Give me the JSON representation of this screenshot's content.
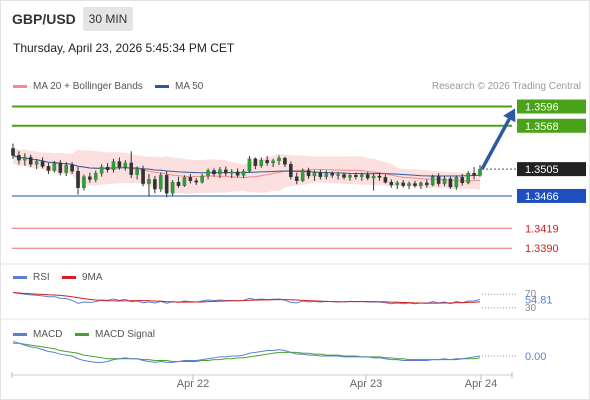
{
  "header": {
    "symbol": "GBP/USD",
    "timeframe": "30 MIN",
    "datetime": "Thursday, April 23, 2026 5:45:34 PM CET"
  },
  "legend": {
    "ma20": "MA 20 + Bollinger Bands",
    "ma50": "MA 50",
    "ma20_color": "#f28b8b",
    "ma50_color": "#2c5a9e",
    "rsi": "RSI",
    "rsi_ma": "9MA",
    "rsi_color": "#5a7fd6",
    "rsi_ma_color": "#d21f1f",
    "macd": "MACD",
    "macd_signal": "MACD Signal",
    "macd_color": "#5a7fd6",
    "macd_signal_color": "#49a02c"
  },
  "credit": "Research © 2026 Trading Central",
  "chart_data": {
    "type": "candlestick",
    "price_ylim": [
      1.337,
      1.362
    ],
    "x_labels": [
      "Apr 22",
      "Apr 23",
      "Apr 24"
    ],
    "levels": [
      {
        "label": "1.3596",
        "value": 1.3596,
        "kind": "resistance",
        "color": "#4aa21a"
      },
      {
        "label": "1.3568",
        "value": 1.3568,
        "kind": "resistance",
        "color": "#4aa21a"
      },
      {
        "label": "1.3505",
        "value": 1.3505,
        "kind": "current",
        "color": "#222222"
      },
      {
        "label": "1.3466",
        "value": 1.3466,
        "kind": "pivot",
        "color": "#1f4fbf"
      },
      {
        "label": "1.3419",
        "value": 1.3419,
        "kind": "support",
        "color": "#e07070"
      },
      {
        "label": "1.3390",
        "value": 1.339,
        "kind": "support",
        "color": "#e07070"
      }
    ],
    "arrow": {
      "from": 1.3505,
      "to": 1.3596,
      "color": "#2c5a9e"
    },
    "candles": [
      [
        1.3535,
        1.3542,
        1.352,
        1.3525
      ],
      [
        1.3525,
        1.3531,
        1.3512,
        1.3518
      ],
      [
        1.3518,
        1.3528,
        1.351,
        1.3522
      ],
      [
        1.3522,
        1.3526,
        1.3508,
        1.3512
      ],
      [
        1.3512,
        1.352,
        1.3505,
        1.3516
      ],
      [
        1.3516,
        1.3522,
        1.3506,
        1.3509
      ],
      [
        1.3509,
        1.3514,
        1.3498,
        1.3503
      ],
      [
        1.3503,
        1.3517,
        1.35,
        1.3514
      ],
      [
        1.3514,
        1.3518,
        1.3496,
        1.35
      ],
      [
        1.35,
        1.3515,
        1.3495,
        1.3511
      ],
      [
        1.3511,
        1.3515,
        1.3498,
        1.3502
      ],
      [
        1.3502,
        1.3508,
        1.3468,
        1.3478
      ],
      [
        1.3478,
        1.3497,
        1.3474,
        1.3494
      ],
      [
        1.3494,
        1.35,
        1.3485,
        1.349
      ],
      [
        1.349,
        1.3503,
        1.3486,
        1.3499
      ],
      [
        1.3499,
        1.3512,
        1.3494,
        1.3508
      ],
      [
        1.3508,
        1.3514,
        1.35,
        1.3504
      ],
      [
        1.3504,
        1.352,
        1.35,
        1.3516
      ],
      [
        1.3516,
        1.3522,
        1.3504,
        1.3508
      ],
      [
        1.3508,
        1.3518,
        1.3503,
        1.3514
      ],
      [
        1.3514,
        1.3531,
        1.3492,
        1.3497
      ],
      [
        1.3497,
        1.3509,
        1.349,
        1.3505
      ],
      [
        1.3505,
        1.351,
        1.348,
        1.3484
      ],
      [
        1.3484,
        1.3498,
        1.3465,
        1.349
      ],
      [
        1.349,
        1.3495,
        1.347,
        1.3476
      ],
      [
        1.3476,
        1.35,
        1.3472,
        1.3496
      ],
      [
        1.3496,
        1.3502,
        1.3464,
        1.347
      ],
      [
        1.347,
        1.3489,
        1.3466,
        1.3486
      ],
      [
        1.3486,
        1.3494,
        1.3478,
        1.3481
      ],
      [
        1.3481,
        1.3496,
        1.3479,
        1.3493
      ],
      [
        1.3493,
        1.3498,
        1.3484,
        1.3488
      ],
      [
        1.3488,
        1.3492,
        1.3482,
        1.3486
      ],
      [
        1.3486,
        1.3498,
        1.3484,
        1.3495
      ],
      [
        1.3495,
        1.3506,
        1.349,
        1.3503
      ],
      [
        1.3503,
        1.3506,
        1.3494,
        1.3498
      ],
      [
        1.3498,
        1.3508,
        1.3492,
        1.3504
      ],
      [
        1.3504,
        1.3509,
        1.3495,
        1.3499
      ],
      [
        1.3499,
        1.3505,
        1.3492,
        1.3501
      ],
      [
        1.3501,
        1.3506,
        1.3493,
        1.3496
      ],
      [
        1.3496,
        1.3505,
        1.3492,
        1.3502
      ],
      [
        1.3502,
        1.3524,
        1.35,
        1.352
      ],
      [
        1.352,
        1.3522,
        1.3505,
        1.351
      ],
      [
        1.351,
        1.3522,
        1.3507,
        1.3518
      ],
      [
        1.3518,
        1.3524,
        1.351,
        1.3514
      ],
      [
        1.3514,
        1.352,
        1.3508,
        1.3517
      ],
      [
        1.3517,
        1.3525,
        1.3511,
        1.3521
      ],
      [
        1.3521,
        1.3523,
        1.3508,
        1.3512
      ],
      [
        1.3512,
        1.3516,
        1.349,
        1.3494
      ],
      [
        1.3494,
        1.35,
        1.3483,
        1.3488
      ],
      [
        1.3488,
        1.3506,
        1.3486,
        1.3503
      ],
      [
        1.3503,
        1.3507,
        1.3491,
        1.3495
      ],
      [
        1.3495,
        1.3503,
        1.3488,
        1.35
      ],
      [
        1.35,
        1.3504,
        1.349,
        1.3494
      ],
      [
        1.3494,
        1.3503,
        1.349,
        1.3499
      ],
      [
        1.3499,
        1.3502,
        1.3492,
        1.3496
      ],
      [
        1.3496,
        1.3501,
        1.349,
        1.3497
      ],
      [
        1.3497,
        1.35,
        1.349,
        1.3493
      ],
      [
        1.3493,
        1.3499,
        1.3488,
        1.3496
      ],
      [
        1.3496,
        1.35,
        1.349,
        1.3494
      ],
      [
        1.3494,
        1.35,
        1.3488,
        1.3497
      ],
      [
        1.3497,
        1.3501,
        1.3489,
        1.3492
      ],
      [
        1.3492,
        1.3498,
        1.3474,
        1.3495
      ],
      [
        1.3495,
        1.35,
        1.3488,
        1.3493
      ],
      [
        1.3493,
        1.3497,
        1.3484,
        1.3486
      ],
      [
        1.3486,
        1.349,
        1.3478,
        1.3482
      ],
      [
        1.3482,
        1.3488,
        1.3476,
        1.3485
      ],
      [
        1.3485,
        1.3489,
        1.3478,
        1.3481
      ],
      [
        1.3481,
        1.3487,
        1.3476,
        1.3484
      ],
      [
        1.3484,
        1.3488,
        1.3478,
        1.3481
      ],
      [
        1.3481,
        1.3487,
        1.3476,
        1.3485
      ],
      [
        1.3485,
        1.349,
        1.3478,
        1.3482
      ],
      [
        1.3482,
        1.3497,
        1.348,
        1.3494
      ],
      [
        1.3494,
        1.3499,
        1.348,
        1.3484
      ],
      [
        1.3484,
        1.3495,
        1.348,
        1.3491
      ],
      [
        1.3491,
        1.3494,
        1.3476,
        1.3479
      ],
      [
        1.3479,
        1.3496,
        1.3475,
        1.3493
      ],
      [
        1.3493,
        1.3498,
        1.3481,
        1.3485
      ],
      [
        1.3485,
        1.3502,
        1.3483,
        1.3499
      ],
      [
        1.3499,
        1.3508,
        1.349,
        1.3496
      ],
      [
        1.3496,
        1.3511,
        1.3494,
        1.3505
      ]
    ],
    "rsi": {
      "value_label": "54.81",
      "ticks": [
        "70",
        "30"
      ],
      "ylim": [
        0,
        100
      ],
      "values": [
        75,
        72,
        70,
        68,
        67,
        65,
        62,
        63,
        58,
        57,
        52,
        43,
        47,
        46,
        48,
        53,
        52,
        56,
        52,
        55,
        48,
        50,
        45,
        47,
        44,
        49,
        43,
        48,
        46,
        50,
        48,
        47,
        50,
        53,
        51,
        53,
        51,
        52,
        50,
        52,
        58,
        54,
        56,
        54,
        55,
        56,
        52,
        46,
        44,
        50,
        47,
        49,
        47,
        49,
        48,
        48,
        47,
        49,
        48,
        49,
        47,
        47,
        47,
        45,
        42,
        44,
        42,
        44,
        42,
        44,
        43,
        48,
        44,
        47,
        42,
        49,
        45,
        50,
        50,
        55
      ]
    },
    "macd": {
      "value_label": "0.00",
      "macd": [
        0.0016,
        0.0014,
        0.0012,
        0.001,
        0.0009,
        0.0007,
        0.0005,
        0.0004,
        0.0002,
        0.0001,
        0.0,
        -0.0003,
        -0.0005,
        -0.0006,
        -0.0007,
        -0.0007,
        -0.0006,
        -0.0004,
        -0.0003,
        -0.0002,
        -0.0003,
        -0.0003,
        -0.0005,
        -0.0006,
        -0.0007,
        -0.0006,
        -0.0007,
        -0.0007,
        -0.0006,
        -0.0005,
        -0.0005,
        -0.0005,
        -0.0004,
        -0.0003,
        -0.0002,
        -0.0001,
        -0.0001,
        0.0,
        0.0,
        0.0001,
        0.0003,
        0.0004,
        0.0005,
        0.0006,
        0.0006,
        0.0007,
        0.0006,
        0.0004,
        0.0002,
        0.0002,
        0.0001,
        0.0001,
        0.0,
        0.0,
        0.0,
        0.0,
        -0.0001,
        -0.0001,
        -0.0001,
        -0.0001,
        -0.0001,
        -0.0002,
        -0.0002,
        -0.0003,
        -0.0004,
        -0.0004,
        -0.0005,
        -0.0005,
        -0.0005,
        -0.0005,
        -0.0005,
        -0.0004,
        -0.0004,
        -0.0003,
        -0.0004,
        -0.0003,
        -0.0003,
        -0.0002,
        -0.0001,
        0.0
      ],
      "signal": [
        0.0014,
        0.0014,
        0.0013,
        0.0012,
        0.0011,
        0.001,
        0.0009,
        0.0008,
        0.0006,
        0.0005,
        0.0004,
        0.0003,
        0.0001,
        0.0,
        -0.0001,
        -0.0002,
        -0.0003,
        -0.0003,
        -0.0003,
        -0.0003,
        -0.0003,
        -0.0003,
        -0.0004,
        -0.0004,
        -0.0005,
        -0.0005,
        -0.0005,
        -0.0006,
        -0.0006,
        -0.0006,
        -0.0006,
        -0.0006,
        -0.0005,
        -0.0005,
        -0.0004,
        -0.0004,
        -0.0003,
        -0.0003,
        -0.0002,
        -0.0002,
        -0.0001,
        0.0,
        0.0001,
        0.0002,
        0.0003,
        0.0004,
        0.0004,
        0.0004,
        0.0004,
        0.0003,
        0.0003,
        0.0002,
        0.0002,
        0.0001,
        0.0001,
        0.0001,
        0.0,
        0.0,
        0.0,
        -0.0001,
        -0.0001,
        -0.0001,
        -0.0001,
        -0.0002,
        -0.0002,
        -0.0003,
        -0.0003,
        -0.0004,
        -0.0004,
        -0.0004,
        -0.0004,
        -0.0004,
        -0.0004,
        -0.0004,
        -0.0004,
        -0.0004,
        -0.0003,
        -0.0003,
        -0.0003,
        -0.0002
      ]
    }
  }
}
